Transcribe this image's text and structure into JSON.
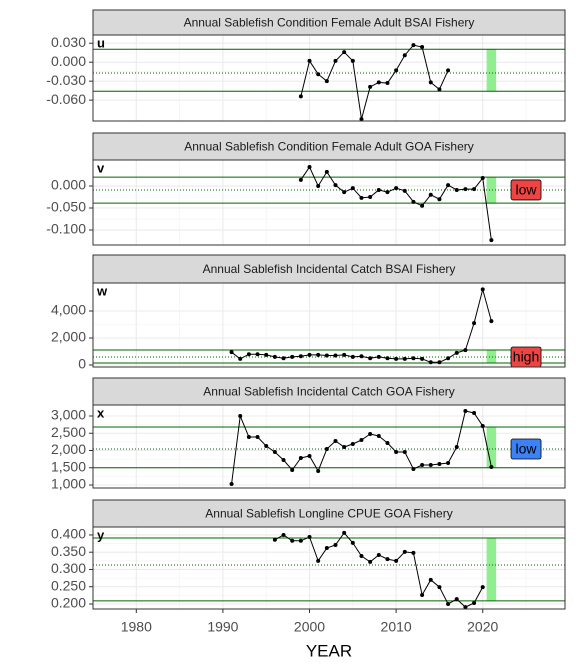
{
  "chart_data": [
    {
      "type": "line",
      "title": "Annual Sablefish Condition Female Adult BSAI Fishery",
      "label": "u",
      "x": [
        1999,
        2000,
        2001,
        2002,
        2003,
        2004,
        2005,
        2006,
        2007,
        2008,
        2009,
        2010,
        2011,
        2012,
        2013,
        2014,
        2015,
        2016
      ],
      "values": [
        -0.054,
        0.002,
        -0.019,
        -0.03,
        0.002,
        0.016,
        0.002,
        -0.09,
        -0.039,
        -0.032,
        -0.033,
        -0.013,
        0.011,
        0.027,
        0.024,
        -0.032,
        -0.043,
        -0.013
      ],
      "ylim": [
        -0.093,
        0.043
      ],
      "yticks": [
        {
          "value": -0.06,
          "label": "-0.060"
        },
        {
          "value": -0.03,
          "label": "-0.030"
        },
        {
          "value": 0,
          "label": "0.000"
        },
        {
          "value": 0.03,
          "label": "0.030"
        }
      ],
      "xlim": [
        1975,
        2029.5
      ],
      "xticks": [
        1980,
        1990,
        2000,
        2010,
        2020
      ],
      "upper": 0.0205,
      "mean": -0.017,
      "lower": -0.046,
      "highlight": 2021,
      "color": "#000000",
      "line_color": "#006400",
      "highlight_color": "#90ee90"
    },
    {
      "type": "line",
      "title": "Annual Sablefish Condition Female Adult GOA Fishery",
      "label": "v",
      "x": [
        1999,
        2000,
        2001,
        2002,
        2003,
        2004,
        2005,
        2006,
        2007,
        2008,
        2009,
        2010,
        2011,
        2012,
        2013,
        2014,
        2015,
        2016,
        2017,
        2018,
        2019,
        2020,
        2021
      ],
      "values": [
        0.014,
        0.043,
        0.0,
        0.032,
        0.002,
        -0.014,
        -0.005,
        -0.027,
        -0.025,
        -0.009,
        -0.014,
        -0.005,
        -0.011,
        -0.036,
        -0.045,
        -0.02,
        -0.03,
        0.002,
        -0.009,
        -0.007,
        -0.007,
        0.018,
        -0.123
      ],
      "ylim": [
        -0.134,
        0.059
      ],
      "yticks": [
        {
          "value": -0.1,
          "label": "-0.100"
        },
        {
          "value": -0.05,
          "label": "-0.050"
        },
        {
          "value": 0,
          "label": "0.000"
        }
      ],
      "xlim": [
        1975,
        2029.5
      ],
      "xticks": [
        1980,
        1990,
        2000,
        2010,
        2020
      ],
      "upper": 0.02,
      "mean": -0.009,
      "lower": -0.039,
      "highlight": 2021,
      "status": "low",
      "status_color": "#ef4444",
      "color": "#000000",
      "line_color": "#006400",
      "highlight_color": "#90ee90"
    },
    {
      "type": "line",
      "title": "Annual Sablefish Incidental Catch BSAI Fishery",
      "label": "w",
      "x": [
        1991,
        1992,
        1993,
        1994,
        1995,
        1996,
        1997,
        1998,
        1999,
        2000,
        2001,
        2002,
        2003,
        2004,
        2005,
        2006,
        2007,
        2008,
        2009,
        2010,
        2011,
        2012,
        2013,
        2014,
        2015,
        2016,
        2017,
        2018,
        2019,
        2020,
        2021
      ],
      "values": [
        950,
        450,
        800,
        800,
        750,
        600,
        500,
        600,
        650,
        750,
        750,
        700,
        700,
        750,
        600,
        650,
        500,
        600,
        500,
        450,
        450,
        500,
        450,
        200,
        200,
        500,
        900,
        1100,
        3100,
        5600,
        3250
      ],
      "ylim": [
        -148,
        6074
      ],
      "yticks": [
        0,
        {
          "value": 2000,
          "label": "2,000"
        },
        {
          "value": 4000,
          "label": "4,000"
        }
      ],
      "xlim": [
        1975,
        2029.5
      ],
      "xticks": [
        1980,
        1990,
        2000,
        2010,
        2020
      ],
      "upper": 1111,
      "mean": 593,
      "lower": 148,
      "highlight": 2021,
      "status": "high",
      "status_color": "#ef4444",
      "color": "#000000",
      "line_color": "#006400",
      "highlight_color": "#90ee90"
    },
    {
      "type": "line",
      "title": "Annual Sablefish Incidental Catch GOA Fishery",
      "label": "x",
      "x": [
        1991,
        1992,
        1993,
        1994,
        1995,
        1996,
        1997,
        1998,
        1999,
        2000,
        2001,
        2002,
        2003,
        2004,
        2005,
        2006,
        2007,
        2008,
        2009,
        2010,
        2011,
        2012,
        2013,
        2014,
        2015,
        2016,
        2017,
        2018,
        2019,
        2020,
        2021
      ],
      "values": [
        1029,
        3000,
        2391,
        2391,
        2130,
        1957,
        1725,
        1435,
        1783,
        1841,
        1406,
        2043,
        2275,
        2101,
        2189,
        2304,
        2478,
        2420,
        2218,
        1957,
        1957,
        1464,
        1580,
        1580,
        1609,
        1638,
        2101,
        3145,
        3087,
        2710,
        1522
      ],
      "ylim": [
        913,
        3319
      ],
      "yticks": [
        {
          "value": 1000,
          "label": "1,000"
        },
        {
          "value": 1500,
          "label": "1,500"
        },
        {
          "value": 2000,
          "label": "2,000"
        },
        {
          "value": 2500,
          "label": "2,500"
        },
        {
          "value": 3000,
          "label": "3,000"
        }
      ],
      "xlim": [
        1975,
        2029.5
      ],
      "xticks": [
        1980,
        1990,
        2000,
        2010,
        2020
      ],
      "upper": 2681,
      "mean": 2043,
      "lower": 1500,
      "highlight": 2021,
      "status": "low",
      "status_color": "#3b82f6",
      "color": "#000000",
      "line_color": "#006400",
      "highlight_color": "#90ee90"
    },
    {
      "type": "line",
      "title": "Annual Sablefish Longline CPUE GOA Fishery",
      "label": "y",
      "x": [
        1996,
        1997,
        1998,
        1999,
        2000,
        2001,
        2002,
        2003,
        2004,
        2005,
        2006,
        2007,
        2008,
        2009,
        2010,
        2011,
        2012,
        2013,
        2014,
        2015,
        2016,
        2017,
        2018,
        2019,
        2020
      ],
      "values": [
        0.386,
        0.4,
        0.383,
        0.383,
        0.394,
        0.325,
        0.362,
        0.371,
        0.406,
        0.377,
        0.339,
        0.322,
        0.342,
        0.33,
        0.325,
        0.351,
        0.348,
        0.226,
        0.27,
        0.249,
        0.2,
        0.214,
        0.191,
        0.203,
        0.249
      ],
      "ylim": [
        0.1855,
        0.423
      ],
      "yticks": [
        {
          "value": 0.2,
          "label": "0.200"
        },
        {
          "value": 0.25,
          "label": "0.250"
        },
        {
          "value": 0.3,
          "label": "0.300"
        },
        {
          "value": 0.35,
          "label": "0.350"
        },
        {
          "value": 0.4,
          "label": "0.400"
        }
      ],
      "xlim": [
        1975,
        2029.5
      ],
      "xticks": [
        1980,
        1990,
        2000,
        2010,
        2020
      ],
      "xlabel": "YEAR",
      "upper": 0.391,
      "mean": 0.313,
      "lower": 0.209,
      "highlight": 2021,
      "color": "#000000",
      "line_color": "#006400",
      "highlight_color": "#90ee90"
    }
  ]
}
